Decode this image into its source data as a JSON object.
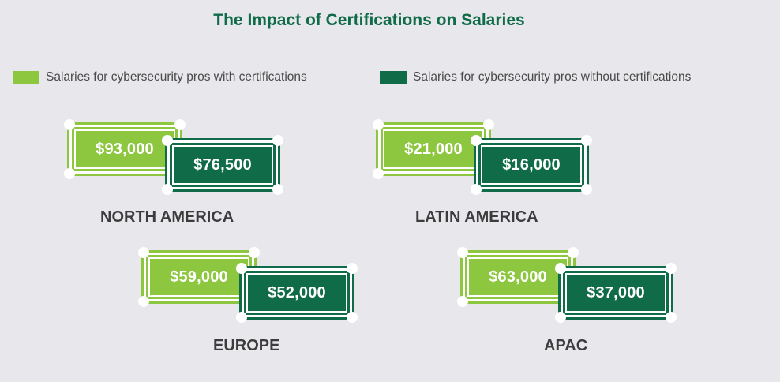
{
  "chart_data": {
    "type": "other",
    "title": "The Impact of Certifications on Salaries",
    "legend": [
      {
        "label": "Salaries for cybersecurity pros with certifications",
        "color": "#8dc63f"
      },
      {
        "label": "Salaries for cybersecurity pros without certifications",
        "color": "#0f6b48"
      }
    ],
    "regions": [
      {
        "name": "NORTH AMERICA",
        "with_cert": "$93,000",
        "without_cert": "$76,500"
      },
      {
        "name": "LATIN AMERICA",
        "with_cert": "$21,000",
        "without_cert": "$16,000"
      },
      {
        "name": "EUROPE",
        "with_cert": "$59,000",
        "without_cert": "$52,000"
      },
      {
        "name": "APAC",
        "with_cert": "$63,000",
        "without_cert": "$37,000"
      }
    ]
  }
}
